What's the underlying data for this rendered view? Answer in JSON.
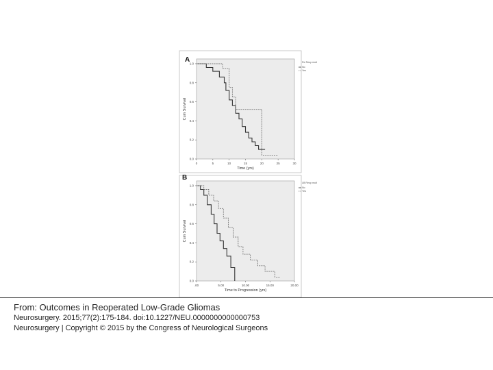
{
  "citation": {
    "title": "From: Outcomes in Reoperated Low-Grade Gliomas",
    "reference": "Neurosurgery. 2015;77(2):175-184. doi:10.1227/NEU.0000000000000753",
    "copyright": "Neurosurgery | Copyright © 2015 by the Congress of Neurological Surgeons"
  },
  "colors": {
    "series_no": "#333333",
    "series_yes": "#777777",
    "plot_bg": "#ececec"
  },
  "chart_data": [
    {
      "type": "line",
      "panel_label": "A",
      "title": "",
      "xlabel": "Time (yrs)",
      "ylabel": "Cum Survival",
      "xlim": [
        0,
        30
      ],
      "ylim": [
        0,
        1.05
      ],
      "xticks": [
        0,
        5,
        10,
        15,
        20,
        25,
        30
      ],
      "xtick_labels": [
        "0",
        "5",
        "10",
        "15",
        "20",
        "25",
        "30"
      ],
      "yticks": [
        0,
        0.2,
        0.4,
        0.6,
        0.8,
        1.0
      ],
      "ytick_labels": [
        "0.0",
        "0.2",
        "0.4",
        "0.6",
        "0.8",
        "1.0"
      ],
      "legend": {
        "title": "Re Reop mult",
        "placement": "top-right"
      },
      "grid": false,
      "series": [
        {
          "name": "No",
          "style": "solid",
          "x": [
            0,
            3,
            3,
            5,
            5,
            7,
            7,
            8.5,
            8.5,
            9,
            9,
            10,
            10,
            11,
            11,
            12,
            12,
            13,
            13,
            14,
            14,
            15,
            15,
            16,
            16,
            17,
            17,
            18,
            18,
            19,
            19,
            21,
            21
          ],
          "y": [
            1.0,
            1.0,
            0.96,
            0.96,
            0.92,
            0.92,
            0.86,
            0.86,
            0.8,
            0.8,
            0.72,
            0.72,
            0.62,
            0.62,
            0.56,
            0.56,
            0.48,
            0.48,
            0.42,
            0.42,
            0.34,
            0.34,
            0.28,
            0.28,
            0.22,
            0.22,
            0.18,
            0.18,
            0.14,
            0.14,
            0.1,
            0.1,
            0.1
          ]
        },
        {
          "name": "Yes",
          "style": "dashed",
          "x": [
            0,
            8,
            8,
            10,
            10,
            11,
            11,
            12,
            12,
            20,
            20,
            24,
            24,
            25
          ],
          "y": [
            1.0,
            1.0,
            0.95,
            0.95,
            0.75,
            0.75,
            0.65,
            0.65,
            0.52,
            0.52,
            0.04,
            0.04,
            0.04,
            0.04
          ]
        }
      ]
    },
    {
      "type": "line",
      "panel_label": "B",
      "title": "",
      "xlabel": "Time to Progression (yrs)",
      "ylabel": "Cum Survival",
      "xlim": [
        0,
        20
      ],
      "ylim": [
        0,
        1.05
      ],
      "xticks": [
        0,
        5,
        10,
        15,
        20
      ],
      "xtick_labels": [
        ".00",
        "5.00",
        "10.00",
        "15.00",
        "20.00"
      ],
      "yticks": [
        0,
        0.2,
        0.4,
        0.6,
        0.8,
        1.0
      ],
      "ytick_labels": [
        "0.0",
        "0.2",
        "0.4",
        "0.6",
        "0.8",
        "1.0"
      ],
      "legend": {
        "title": "LB Reop mult",
        "placement": "top-right"
      },
      "grid": false,
      "series": [
        {
          "name": "No",
          "style": "solid",
          "x": [
            0,
            0.8,
            0.8,
            1.5,
            1.5,
            2.2,
            2.2,
            3.0,
            3.0,
            3.6,
            3.6,
            4.2,
            4.2,
            4.8,
            4.8,
            5.5,
            5.5,
            6.2,
            6.2,
            7.0,
            7.0,
            7.8,
            7.8
          ],
          "y": [
            1.0,
            1.0,
            0.96,
            0.96,
            0.9,
            0.9,
            0.8,
            0.8,
            0.7,
            0.7,
            0.6,
            0.6,
            0.5,
            0.5,
            0.42,
            0.42,
            0.34,
            0.34,
            0.26,
            0.26,
            0.14,
            0.14,
            0.0
          ]
        },
        {
          "name": "Yes",
          "style": "dashed",
          "x": [
            0,
            1.5,
            1.5,
            2.5,
            2.5,
            3.5,
            3.5,
            4.5,
            4.5,
            5.5,
            5.5,
            6.5,
            6.5,
            7.5,
            7.5,
            8.5,
            8.5,
            9.5,
            9.5,
            11.0,
            11.0,
            12.5,
            12.5,
            14.0,
            14.0,
            16.0,
            16.0,
            17.0
          ],
          "y": [
            1.0,
            1.0,
            0.96,
            0.96,
            0.9,
            0.9,
            0.84,
            0.84,
            0.76,
            0.76,
            0.66,
            0.66,
            0.56,
            0.56,
            0.46,
            0.46,
            0.36,
            0.36,
            0.28,
            0.28,
            0.22,
            0.22,
            0.16,
            0.16,
            0.1,
            0.1,
            0.04,
            0.04
          ]
        }
      ]
    }
  ]
}
